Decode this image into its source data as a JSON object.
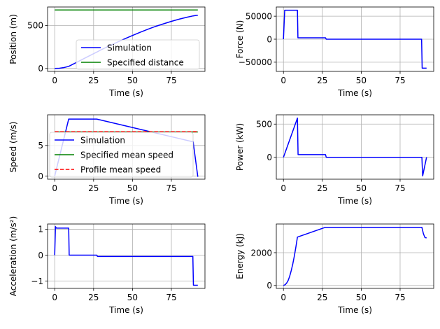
{
  "chart_data": [
    {
      "id": "position",
      "type": "line",
      "xlabel": "Time (s)",
      "ylabel": "Position (m)",
      "xlim": [
        -4.6,
        96.6
      ],
      "ylim": [
        -34,
        715
      ],
      "xticks": [
        0,
        25,
        50,
        75
      ],
      "xtick_labels": [
        "0",
        "25",
        "50",
        "75"
      ],
      "yticks": [
        0,
        500
      ],
      "ytick_labels": [
        "0",
        "500"
      ],
      "grid": true,
      "legend": "center-right",
      "series": [
        {
          "name": "Simulation",
          "color": "#0000ff",
          "x": [
            0,
            3,
            6,
            9,
            12,
            15,
            20,
            25,
            27,
            30,
            35,
            40,
            45,
            50,
            55,
            60,
            65,
            70,
            75,
            80,
            85,
            89,
            91,
            92
          ],
          "y": [
            0,
            3,
            11,
            25,
            52,
            80,
            126,
            172,
            191,
            218,
            262,
            304,
            345,
            384,
            421,
            457,
            490,
            520,
            548,
            573,
            596,
            612,
            617,
            618
          ]
        },
        {
          "name": "Specified distance",
          "color": "#008000",
          "x": [
            0,
            92
          ],
          "y": [
            680,
            680
          ]
        }
      ]
    },
    {
      "id": "force",
      "type": "line",
      "xlabel": "Time (s)",
      "ylabel": "Force (N)",
      "xlim": [
        -4.6,
        96.6
      ],
      "ylim": [
        -70000,
        70000
      ],
      "xticks": [
        0,
        25,
        50,
        75
      ],
      "xtick_labels": [
        "0",
        "25",
        "50",
        "75"
      ],
      "yticks": [
        -50000,
        0,
        50000
      ],
      "ytick_labels": [
        "−50000",
        "0",
        "50000"
      ],
      "grid": true,
      "series": [
        {
          "name": "",
          "color": "#0000ff",
          "x": [
            0,
            0.8,
            9,
            9.3,
            27,
            27.5,
            88.8,
            89.2,
            92
          ],
          "y": [
            0,
            63000,
            63000,
            3000,
            3000,
            0,
            0,
            -63000,
            -63000
          ]
        }
      ]
    },
    {
      "id": "speed",
      "type": "line",
      "xlabel": "Time (s)",
      "ylabel": "Speed (m/s)",
      "xlim": [
        -4.6,
        96.6
      ],
      "ylim": [
        -0.5,
        10.0
      ],
      "xticks": [
        0,
        25,
        50,
        75
      ],
      "xtick_labels": [
        "0",
        "25",
        "50",
        "75"
      ],
      "yticks": [
        0,
        5
      ],
      "ytick_labels": [
        "0",
        "5"
      ],
      "grid": true,
      "legend": "center-left",
      "series": [
        {
          "name": "Simulation",
          "color": "#0000ff",
          "x": [
            0,
            9,
            27,
            89,
            92
          ],
          "y": [
            0,
            9.3,
            9.3,
            5.6,
            -0.1
          ]
        },
        {
          "name": "Specified mean speed",
          "color": "#008000",
          "x": [
            0,
            92
          ],
          "y": [
            7.2,
            7.2
          ]
        },
        {
          "name": "Profile mean speed",
          "color": "#ff0000",
          "dashed": true,
          "x": [
            0,
            92
          ],
          "y": [
            7.25,
            7.25
          ]
        }
      ]
    },
    {
      "id": "power",
      "type": "line",
      "xlabel": "Time (s)",
      "ylabel": "Power (kW)",
      "xlim": [
        -4.6,
        96.6
      ],
      "ylim": [
        -330,
        640
      ],
      "xticks": [
        0,
        25,
        50,
        75
      ],
      "xtick_labels": [
        "0",
        "25",
        "50",
        "75"
      ],
      "yticks": [
        0,
        500
      ],
      "ytick_labels": [
        "0",
        "500"
      ],
      "grid": true,
      "series": [
        {
          "name": "",
          "color": "#0000ff",
          "x": [
            0,
            9,
            9.4,
            27,
            27.5,
            89,
            89.5,
            92
          ],
          "y": [
            0,
            590,
            40,
            40,
            0,
            0,
            -280,
            0
          ]
        }
      ]
    },
    {
      "id": "acceleration",
      "type": "line",
      "xlabel": "Time (s)",
      "ylabel": "Acceleration (m/s²)",
      "xlim": [
        -4.6,
        96.6
      ],
      "ylim": [
        -1.28,
        1.2
      ],
      "xticks": [
        0,
        25,
        50,
        75
      ],
      "xtick_labels": [
        "0",
        "25",
        "50",
        "75"
      ],
      "yticks": [
        -1,
        0,
        1
      ],
      "ytick_labels": [
        "−1",
        "0",
        "1"
      ],
      "grid": true,
      "series": [
        {
          "name": "",
          "color": "#0000ff",
          "x": [
            0,
            0.5,
            1,
            9,
            9.3,
            27,
            27.5,
            88.8,
            89.2,
            92
          ],
          "y": [
            0,
            1.1,
            1.04,
            1.04,
            0.0,
            0.0,
            -0.05,
            -0.05,
            -1.16,
            -1.16
          ]
        }
      ]
    },
    {
      "id": "energy",
      "type": "line",
      "xlabel": "Time (s)",
      "ylabel": "Energy (kJ)",
      "xlim": [
        -4.6,
        96.6
      ],
      "ylim": [
        -180,
        3750
      ],
      "xticks": [
        0,
        25,
        50,
        75
      ],
      "xtick_labels": [
        "0",
        "25",
        "50",
        "75"
      ],
      "yticks": [
        0,
        2000
      ],
      "ytick_labels": [
        "0",
        "2000"
      ],
      "grid": true,
      "series": [
        {
          "name": "",
          "color": "#0000ff",
          "x": [
            0,
            1,
            2,
            3,
            4,
            5,
            6,
            7,
            8,
            9,
            27,
            89,
            90,
            91,
            92
          ],
          "y": [
            0,
            40,
            140,
            300,
            560,
            900,
            1320,
            1800,
            2350,
            2950,
            3550,
            3550,
            3150,
            2920,
            2900
          ]
        }
      ]
    }
  ]
}
